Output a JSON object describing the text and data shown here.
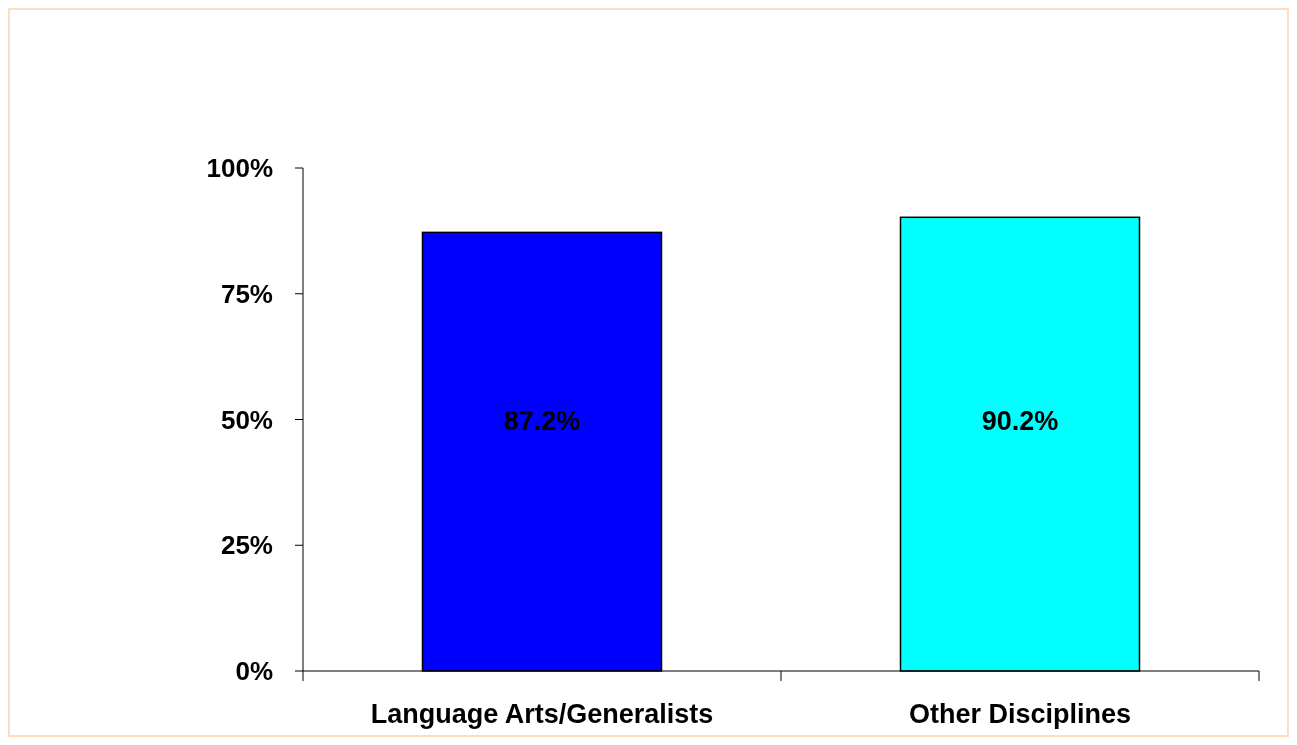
{
  "chart_data": {
    "type": "bar",
    "categories": [
      "Language Arts/Generalists",
      "Other Disciplines"
    ],
    "values": [
      87.2,
      90.2
    ],
    "colors": [
      "#0000ff",
      "#00ffff"
    ],
    "ylim": [
      0,
      100
    ],
    "yticks": [
      {
        "value": 0,
        "label": "0%"
      },
      {
        "value": 25,
        "label": "25%"
      },
      {
        "value": 50,
        "label": "50%"
      },
      {
        "value": 75,
        "label": "75%"
      },
      {
        "value": 100,
        "label": "100%"
      }
    ],
    "value_labels": [
      "87.2%",
      "90.2%"
    ]
  }
}
